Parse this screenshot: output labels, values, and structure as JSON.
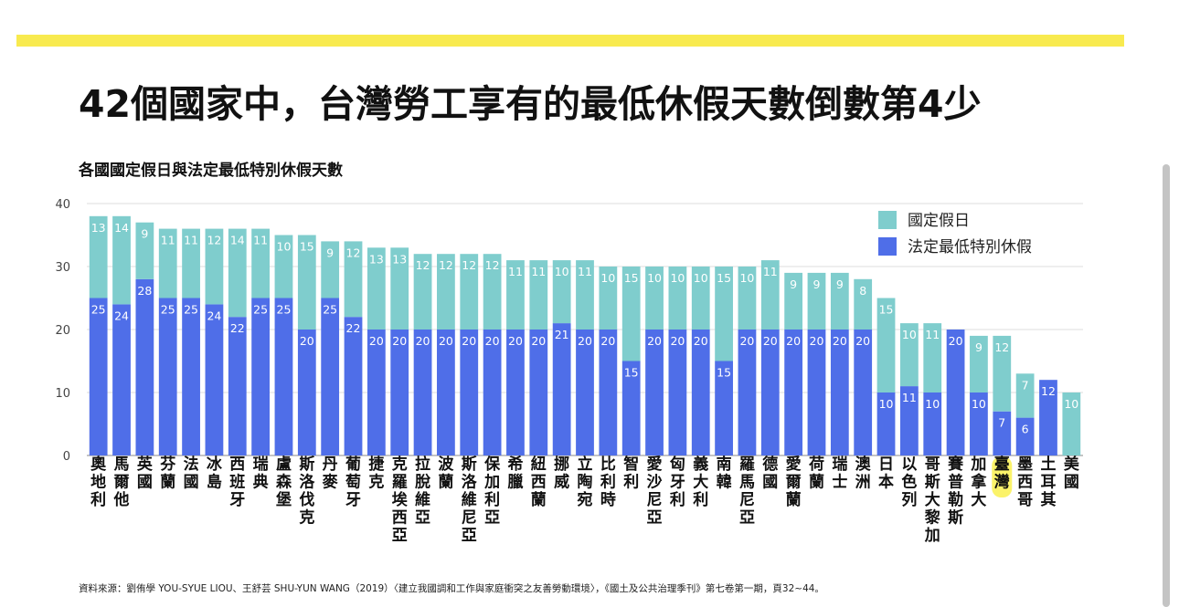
{
  "headline": "42個國家中，台灣勞工享有的最低休假天數倒數第4少",
  "source": "資料來源：劉侑學 YOU-SYUE LIOU、王舒芸 SHU-YUN WANG（2019）〈建立我國調和工作與家庭衝突之友善勞動環境〉，《國土及公共治理季刊》第七卷第一期，頁32~44。",
  "colors": {
    "holiday": "#7fcdcd",
    "leave": "#4f6ee8",
    "highlight": "#fbf36a",
    "topbar": "#f8ea4f"
  },
  "chart_data": {
    "type": "bar",
    "stacked": true,
    "title": "各國國定假日與法定最低特別休假天數",
    "ylim": [
      0,
      40
    ],
    "yticks": [
      0,
      10,
      20,
      30,
      40
    ],
    "grid": true,
    "legend_position": "top-right",
    "highlight_category": "臺灣",
    "categories": [
      "奧地利",
      "馬爾他",
      "英國",
      "芬蘭",
      "法國",
      "冰島",
      "西班牙",
      "瑞典",
      "盧森堡",
      "斯洛伐克",
      "丹麥",
      "葡萄牙",
      "捷克",
      "克羅埃西亞",
      "拉脫維亞",
      "波蘭",
      "斯洛維尼亞",
      "保加利亞",
      "希臘",
      "紐西蘭",
      "挪威",
      "立陶宛",
      "比利時",
      "智利",
      "愛沙尼亞",
      "匈牙利",
      "義大利",
      "南韓",
      "羅馬尼亞",
      "德國",
      "愛爾蘭",
      "荷蘭",
      "瑞士",
      "澳洲",
      "日本",
      "以色列",
      "哥斯大黎加",
      "賽普勒斯",
      "加拿大",
      "臺灣",
      "墨西哥",
      "土耳其",
      "美國"
    ],
    "series": [
      {
        "name": "法定最低特別休假",
        "values": [
          25,
          24,
          28,
          25,
          25,
          24,
          22,
          25,
          25,
          20,
          25,
          22,
          20,
          20,
          20,
          20,
          20,
          20,
          20,
          20,
          21,
          20,
          20,
          15,
          20,
          20,
          20,
          15,
          20,
          20,
          20,
          20,
          20,
          20,
          10,
          11,
          10,
          20,
          10,
          7,
          6,
          12,
          0
        ]
      },
      {
        "name": "國定假日",
        "values": [
          13,
          14,
          9,
          11,
          11,
          12,
          14,
          11,
          10,
          15,
          9,
          12,
          13,
          13,
          12,
          12,
          12,
          12,
          11,
          11,
          10,
          11,
          10,
          15,
          10,
          10,
          10,
          15,
          10,
          11,
          9,
          9,
          9,
          8,
          15,
          10,
          11,
          0,
          9,
          12,
          7,
          0,
          10
        ]
      }
    ]
  }
}
